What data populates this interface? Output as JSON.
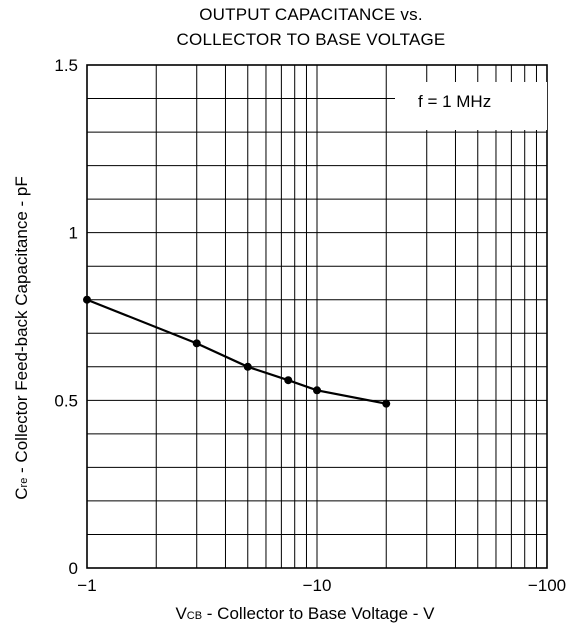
{
  "title": {
    "line1": "OUTPUT CAPACITANCE vs.",
    "line2": "COLLECTOR TO BASE VOLTAGE"
  },
  "annotation": "f = 1 MHz",
  "x_axis": {
    "label_main_prefix": "V",
    "label_subscript": "CB",
    "label_rest": " - Collector to Base Voltage - V",
    "tick_labels": [
      "−1",
      "−10",
      "−100"
    ]
  },
  "y_axis": {
    "label_prefix": "C",
    "label_subscript": "re",
    "label_rest": " - Collector Feed-back Capacitance - pF",
    "tick_labels": [
      "0",
      "0.5",
      "1",
      "1.5"
    ]
  },
  "chart_data": {
    "type": "line",
    "title": "OUTPUT CAPACITANCE vs. COLLECTOR TO BASE VOLTAGE",
    "xlabel": "VCB - Collector to Base Voltage - V",
    "ylabel": "Cre - Collector Feed-back Capacitance - pF",
    "x_scale": "log",
    "x_direction": "negative values, magnitude increasing to the right",
    "xlim": [
      -1,
      -100
    ],
    "ylim": [
      0,
      1.5
    ],
    "x_ticks": [
      -1,
      -10,
      -100
    ],
    "y_ticks": [
      0,
      0.5,
      1,
      1.5
    ],
    "grid": true,
    "series": [
      {
        "x": [
          -1,
          -3,
          -5,
          -7.5,
          -10,
          -20
        ],
        "y": [
          0.8,
          0.67,
          0.6,
          0.56,
          0.53,
          0.49
        ]
      }
    ],
    "annotation": "f = 1 MHz"
  }
}
